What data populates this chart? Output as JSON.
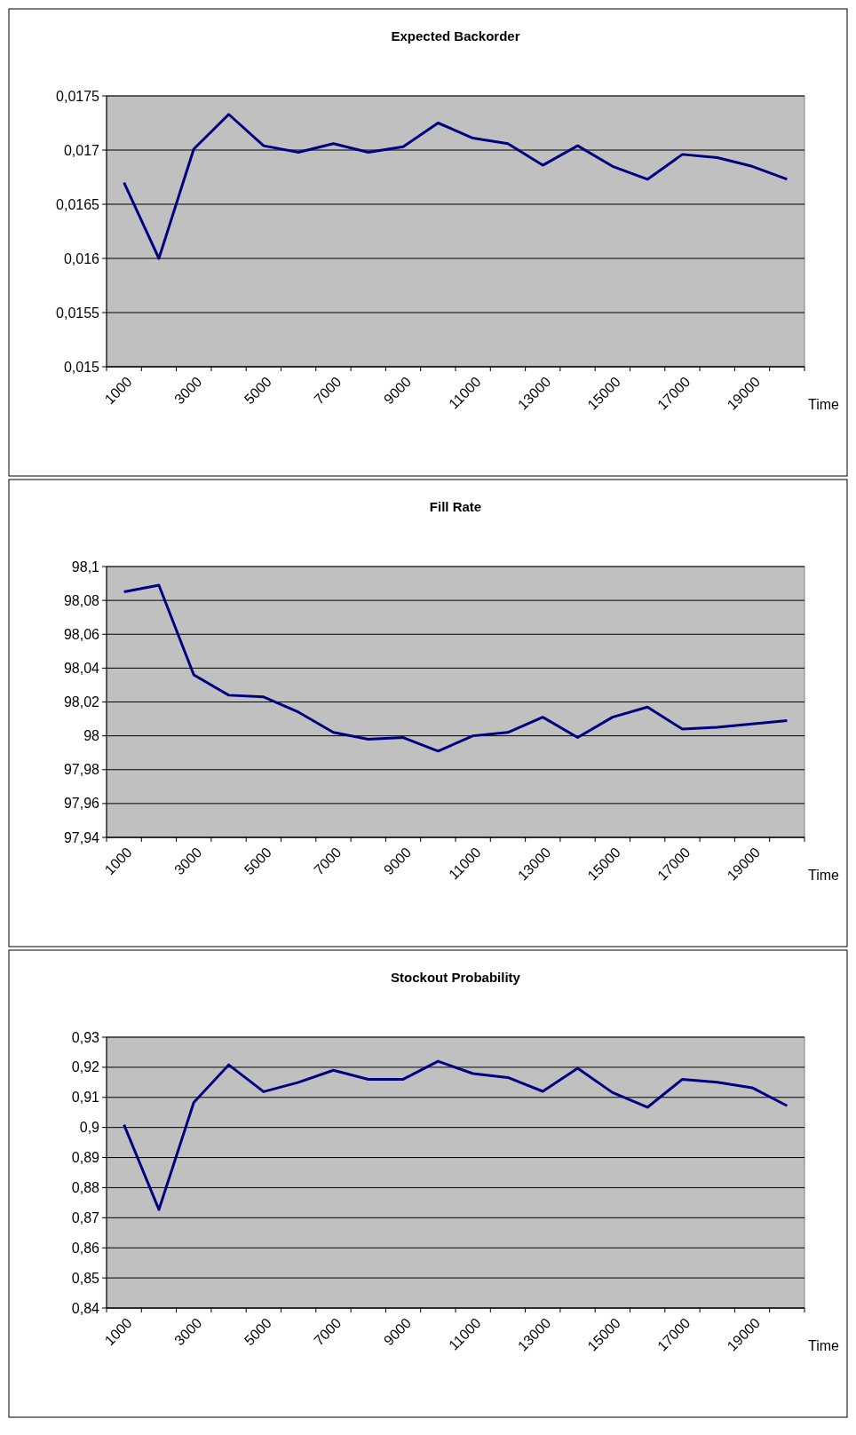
{
  "chart_data": [
    {
      "type": "line",
      "title": "Expected Backorder",
      "xlabel": "Time",
      "categories": [
        "1000",
        null,
        "3000",
        null,
        "5000",
        null,
        "7000",
        null,
        "9000",
        null,
        "11000",
        null,
        "13000",
        null,
        "15000",
        null,
        "17000",
        null,
        "19000",
        null
      ],
      "series": [
        {
          "color": "#000080",
          "values": [
            0.0167,
            0.016,
            0.01701,
            0.01733,
            0.01704,
            0.01698,
            0.01706,
            0.01698,
            0.01703,
            0.01725,
            0.01711,
            0.01706,
            0.01686,
            0.01704,
            0.01685,
            0.01673,
            0.01696,
            0.01693,
            0.01685,
            0.01673
          ]
        }
      ],
      "ylim": [
        0.015,
        0.0175
      ],
      "yticks": [
        {
          "value": 0.015,
          "label": "0,015"
        },
        {
          "value": 0.0155,
          "label": "0,0155"
        },
        {
          "value": 0.016,
          "label": "0,016"
        },
        {
          "value": 0.0165,
          "label": "0,0165"
        },
        {
          "value": 0.017,
          "label": "0,017"
        },
        {
          "value": 0.0175,
          "label": "0,0175"
        }
      ],
      "grid": "y"
    },
    {
      "type": "line",
      "title": "Fill Rate",
      "xlabel": "Time",
      "categories": [
        "1000",
        null,
        "3000",
        null,
        "5000",
        null,
        "7000",
        null,
        "9000",
        null,
        "11000",
        null,
        "13000",
        null,
        "15000",
        null,
        "17000",
        null,
        "19000",
        null
      ],
      "series": [
        {
          "color": "#000080",
          "values": [
            98.085,
            98.089,
            98.036,
            98.024,
            98.023,
            98.014,
            98.002,
            97.998,
            97.999,
            97.991,
            98.0,
            98.002,
            98.011,
            97.999,
            98.011,
            98.017,
            98.004,
            98.005,
            98.007,
            98.009
          ]
        }
      ],
      "ylim": [
        97.94,
        98.1
      ],
      "yticks": [
        {
          "value": 97.94,
          "label": "97,94"
        },
        {
          "value": 97.96,
          "label": "97,96"
        },
        {
          "value": 97.98,
          "label": "97,98"
        },
        98,
        {
          "value": 98.02,
          "label": "98,02"
        },
        {
          "value": 98.04,
          "label": "98,04"
        },
        {
          "value": 98.06,
          "label": "98,06"
        },
        {
          "value": 98.08,
          "label": "98,08"
        },
        {
          "value": 98.1,
          "label": "98,1"
        }
      ],
      "grid": "y"
    },
    {
      "type": "line",
      "title": "Stockout Probability",
      "xlabel": "Time",
      "categories": [
        "1000",
        null,
        "3000",
        null,
        "5000",
        null,
        "7000",
        null,
        "9000",
        null,
        "11000",
        null,
        "13000",
        null,
        "15000",
        null,
        "17000",
        null,
        "19000",
        null
      ],
      "series": [
        {
          "color": "#000080",
          "values": [
            0.9009,
            0.8727,
            0.9083,
            0.9208,
            0.9119,
            0.915,
            0.919,
            0.916,
            0.916,
            0.922,
            0.9179,
            0.9166,
            0.912,
            0.9197,
            0.9116,
            0.9067,
            0.916,
            0.915,
            0.9132,
            0.9072
          ]
        }
      ],
      "ylim": [
        0.84,
        0.93
      ],
      "yticks": [
        {
          "value": 0.84,
          "label": "0,84"
        },
        {
          "value": 0.85,
          "label": "0,85"
        },
        {
          "value": 0.86,
          "label": "0,86"
        },
        {
          "value": 0.87,
          "label": "0,87"
        },
        {
          "value": 0.88,
          "label": "0,88"
        },
        {
          "value": 0.89,
          "label": "0,89"
        },
        {
          "value": 0.9,
          "label": "0,9"
        },
        {
          "value": 0.91,
          "label": "0,91"
        },
        {
          "value": 0.92,
          "label": "0,92"
        },
        {
          "value": 0.93,
          "label": "0,93"
        }
      ],
      "grid": "y"
    }
  ]
}
